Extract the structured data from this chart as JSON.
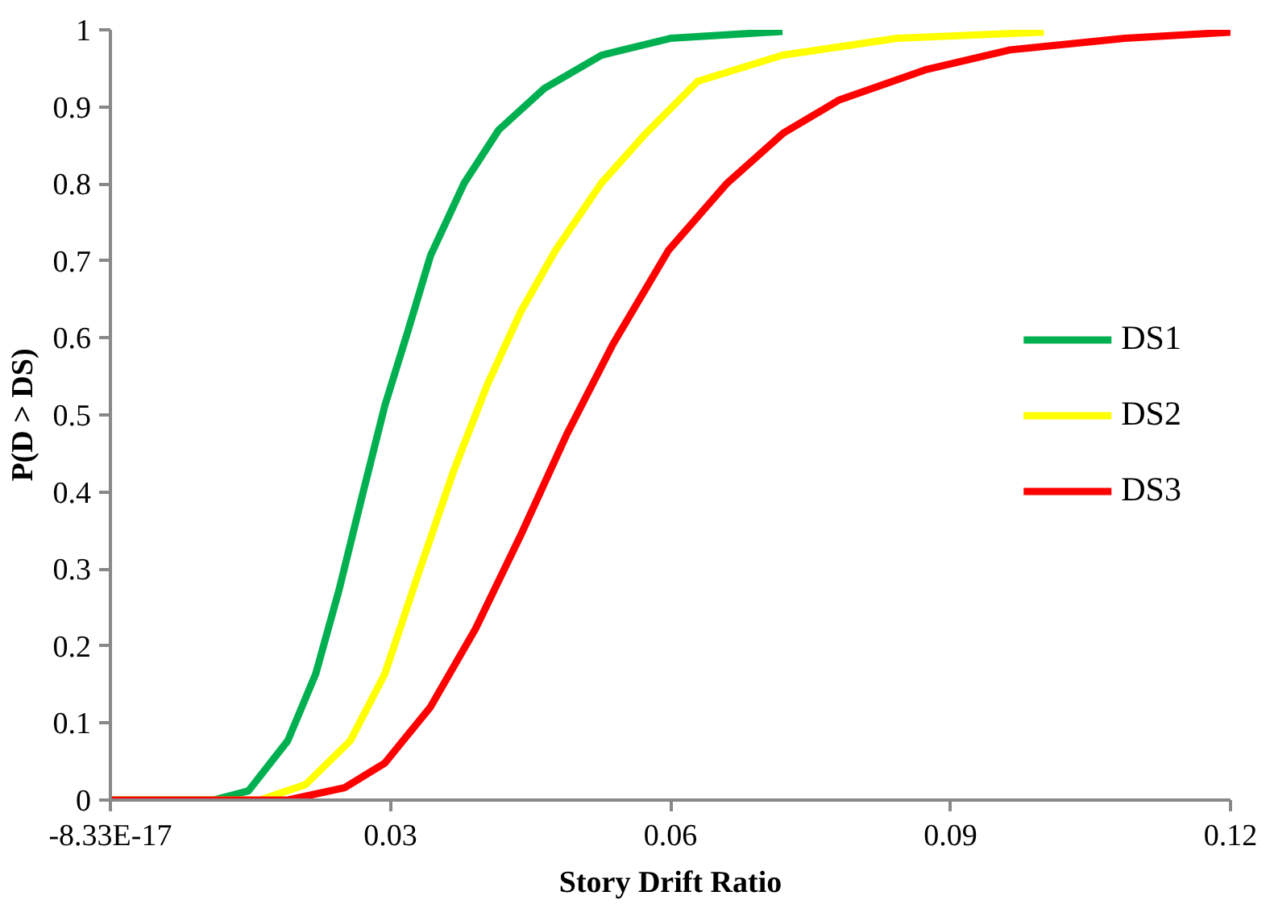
{
  "chart_data": {
    "type": "line",
    "xlabel": "Story Drift Ratio",
    "ylabel": "P(D > DS)",
    "xlim": [
      0,
      0.12
    ],
    "xticks": [
      {
        "value": 0,
        "label": "-8.33E-17"
      },
      0.03,
      0.06,
      0.09,
      0.12
    ],
    "ylim": [
      0,
      1
    ],
    "yticks": [
      0,
      0.1,
      0.2,
      0.3,
      0.4,
      0.5,
      0.6,
      0.7,
      0.8,
      0.9,
      1
    ],
    "grid": false,
    "legend": "right",
    "marker": "none",
    "line_style": "solid",
    "series": [
      {
        "name": "DS1",
        "color": "#00b050",
        "x": [
          0,
          0.011,
          0.0148,
          0.019,
          0.022,
          0.0245,
          0.027,
          0.0294,
          0.0318,
          0.0343,
          0.0379,
          0.0416,
          0.0465,
          0.0526,
          0.06,
          0.072
        ],
        "values": [
          0,
          0,
          0.012,
          0.077,
          0.164,
          0.273,
          0.396,
          0.512,
          0.606,
          0.707,
          0.801,
          0.87,
          0.924,
          0.967,
          0.989,
          0.998
        ]
      },
      {
        "name": "DS2",
        "color": "#ffff00",
        "x": [
          0,
          0.016,
          0.0209,
          0.0257,
          0.0294,
          0.033,
          0.0367,
          0.0404,
          0.044,
          0.0477,
          0.0526,
          0.0574,
          0.0629,
          0.072,
          0.0843,
          0.1
        ],
        "values": [
          0,
          0,
          0.02,
          0.077,
          0.164,
          0.294,
          0.425,
          0.54,
          0.635,
          0.714,
          0.801,
          0.866,
          0.933,
          0.967,
          0.989,
          0.997
        ]
      },
      {
        "name": "DS3",
        "color": "#ff0000",
        "x": [
          0,
          0.019,
          0.0251,
          0.0294,
          0.0343,
          0.0391,
          0.044,
          0.0489,
          0.0538,
          0.0598,
          0.066,
          0.0721,
          0.0781,
          0.0873,
          0.0964,
          0.1087,
          0.12
        ],
        "values": [
          0,
          0,
          0.016,
          0.048,
          0.121,
          0.222,
          0.345,
          0.475,
          0.591,
          0.714,
          0.8,
          0.866,
          0.909,
          0.948,
          0.974,
          0.989,
          0.997
        ]
      }
    ]
  }
}
